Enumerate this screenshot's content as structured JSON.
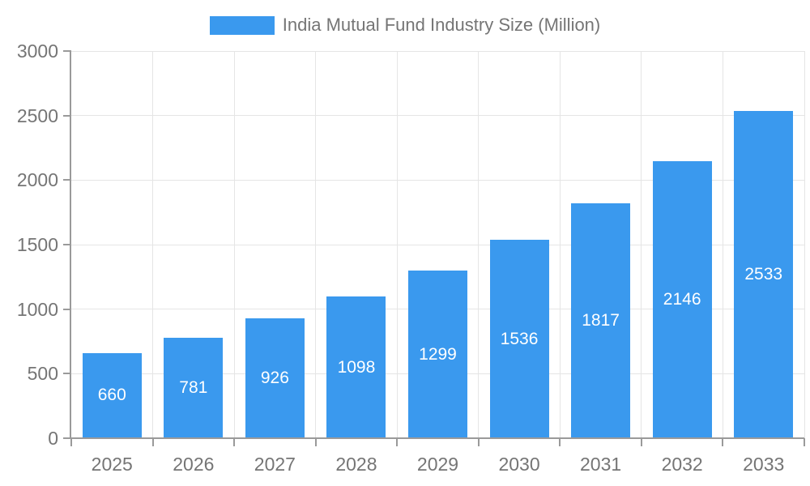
{
  "chart_data": {
    "type": "bar",
    "title": "India Mutual Fund Industry Size (Million)",
    "categories": [
      "2025",
      "2026",
      "2027",
      "2028",
      "2029",
      "2030",
      "2031",
      "2032",
      "2033"
    ],
    "values": [
      660,
      781,
      926,
      1098,
      1299,
      1536,
      1817,
      2146,
      2533
    ],
    "yticks": [
      0,
      500,
      1000,
      1500,
      2000,
      2500,
      3000
    ],
    "ylim": [
      0,
      3000
    ],
    "xlabel": "",
    "ylabel": "",
    "grid": true,
    "legend_position": "top",
    "colors": {
      "bar": "#3A99EE",
      "bar_label": "#ffffff",
      "axis_text": "#757575",
      "grid_line": "#e5e5e5",
      "axis_line": "#9a9a9a",
      "background": "#ffffff"
    }
  }
}
